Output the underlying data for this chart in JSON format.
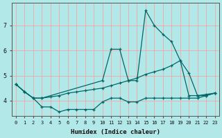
{
  "xlabel": "Humidex (Indice chaleur)",
  "background_color": "#b2e8e8",
  "grid_color": "#ff9999",
  "line_color": "#006666",
  "xlim": [
    -0.5,
    23.5
  ],
  "ylim": [
    3.4,
    7.9
  ],
  "xticks": [
    0,
    1,
    2,
    3,
    4,
    5,
    6,
    7,
    8,
    9,
    10,
    11,
    12,
    13,
    14,
    15,
    16,
    17,
    18,
    19,
    20,
    21,
    22,
    23
  ],
  "yticks": [
    4,
    5,
    6,
    7
  ],
  "line1_x": [
    0,
    1,
    2,
    3,
    10,
    11,
    12,
    13,
    14,
    15,
    16,
    17,
    18,
    19,
    20,
    21,
    22,
    23
  ],
  "line1_y": [
    4.65,
    4.35,
    4.1,
    4.1,
    4.8,
    6.05,
    6.05,
    4.8,
    4.8,
    7.6,
    7.0,
    6.65,
    6.35,
    5.6,
    5.1,
    4.2,
    4.2,
    4.3
  ],
  "line2_x": [
    0,
    1,
    2,
    3,
    4,
    5,
    6,
    7,
    8,
    9,
    10,
    11,
    12,
    13,
    14,
    15,
    16,
    17,
    18,
    19,
    20,
    21,
    22,
    23
  ],
  "line2_y": [
    4.65,
    4.35,
    4.1,
    4.1,
    4.15,
    4.2,
    4.3,
    4.35,
    4.4,
    4.45,
    4.5,
    4.6,
    4.7,
    4.8,
    4.9,
    5.05,
    5.15,
    5.25,
    5.4,
    5.6,
    4.2,
    4.2,
    4.25,
    4.3
  ],
  "line3_x": [
    0,
    1,
    2,
    3,
    4,
    5,
    6,
    7,
    8,
    9,
    10,
    11,
    12,
    13,
    14,
    15,
    16,
    17,
    18,
    19,
    20,
    21,
    22,
    23
  ],
  "line3_y": [
    4.65,
    4.35,
    4.1,
    3.75,
    3.75,
    3.55,
    3.65,
    3.65,
    3.65,
    3.65,
    3.95,
    4.1,
    4.1,
    3.95,
    3.95,
    4.1,
    4.1,
    4.1,
    4.1,
    4.1,
    4.1,
    4.1,
    4.2,
    4.3
  ]
}
